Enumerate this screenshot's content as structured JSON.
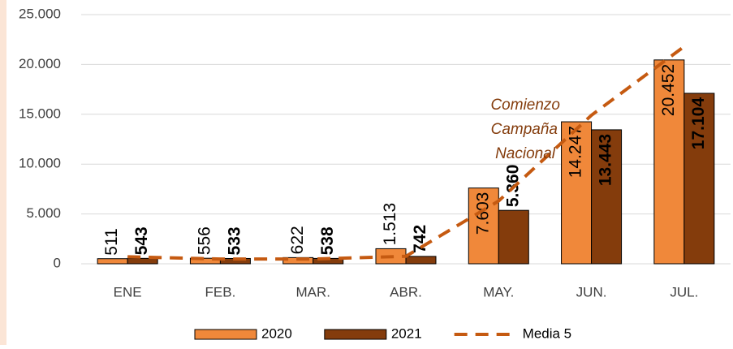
{
  "chart_data": {
    "type": "bar",
    "categories": [
      "ENE",
      "FEB.",
      "MAR.",
      "ABR.",
      "MAY.",
      "JUN.",
      "JUL."
    ],
    "series": [
      {
        "name": "2020",
        "color": "#f0883a",
        "values": [
          511,
          556,
          622,
          1513,
          7603,
          14247,
          20452
        ],
        "value_labels": [
          "511",
          "556",
          "622",
          "1.513",
          "7.603",
          "14.247",
          "20.452"
        ]
      },
      {
        "name": "2021",
        "color": "#843c0c",
        "values": [
          543,
          533,
          538,
          742,
          5360,
          13443,
          17104
        ],
        "value_labels": [
          "543",
          "533",
          "538",
          "742",
          "5.360",
          "13.443",
          "17.104"
        ]
      },
      {
        "name": "Media 5",
        "type": "line",
        "color": "#c55a11",
        "values": [
          700,
          480,
          480,
          750,
          6300,
          14900,
          21800
        ]
      }
    ],
    "ylim": [
      0,
      25000
    ],
    "yticks": [
      {
        "value": 0,
        "label": "0"
      },
      {
        "value": 5000,
        "label": "5.000"
      },
      {
        "value": 10000,
        "label": "10.000"
      },
      {
        "value": 15000,
        "label": "15.000"
      },
      {
        "value": 20000,
        "label": "20.000"
      },
      {
        "value": 25000,
        "label": "25.000"
      }
    ],
    "grid": true,
    "annotation": [
      "Comienzo",
      "Campaña",
      "Nacional"
    ]
  }
}
